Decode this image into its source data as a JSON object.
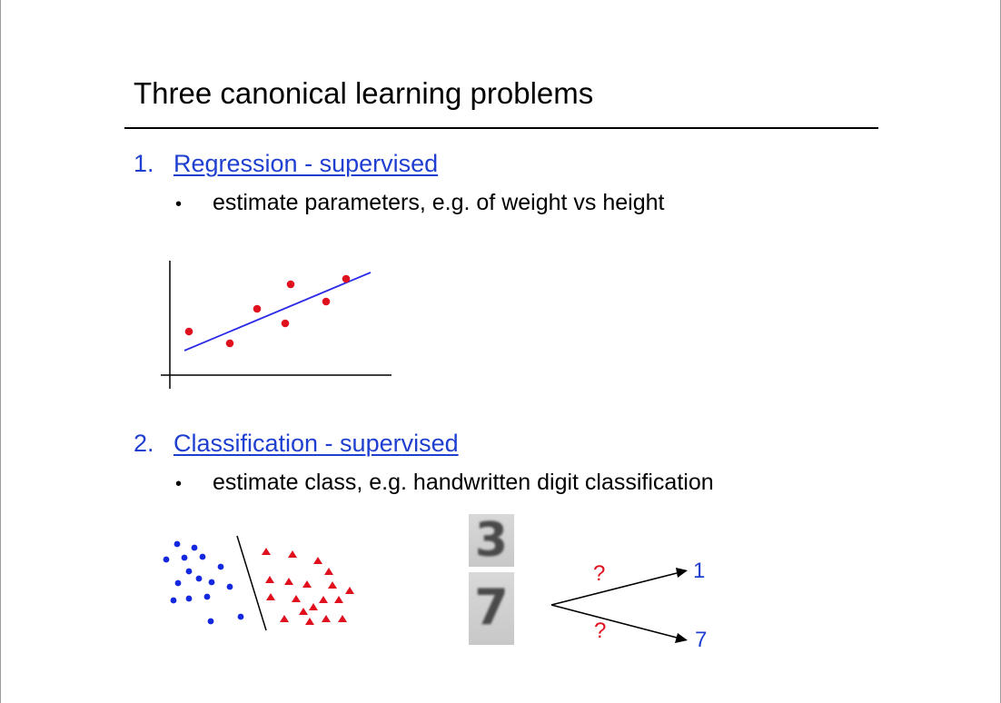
{
  "slide": {
    "title": "Three canonical learning problems",
    "items": [
      {
        "number": "1.",
        "heading": "Regression - supervised",
        "bullet": "estimate parameters, e.g.  of weight vs height"
      },
      {
        "number": "2.",
        "heading": "Classification - supervised",
        "bullet": "estimate class, e.g. handwritten digit classification"
      }
    ]
  },
  "bullet_symbol": "•",
  "digits": {
    "top": "3",
    "bottom": "7"
  },
  "classifier": {
    "question_upper": "?",
    "question_lower": "?",
    "output_upper": "1",
    "output_lower": "7"
  },
  "colors": {
    "link_blue": "#1f3fd0",
    "point_red": "#e0101e",
    "point_blue": "#1428e0",
    "fit_line": "#2a2ae8"
  }
}
